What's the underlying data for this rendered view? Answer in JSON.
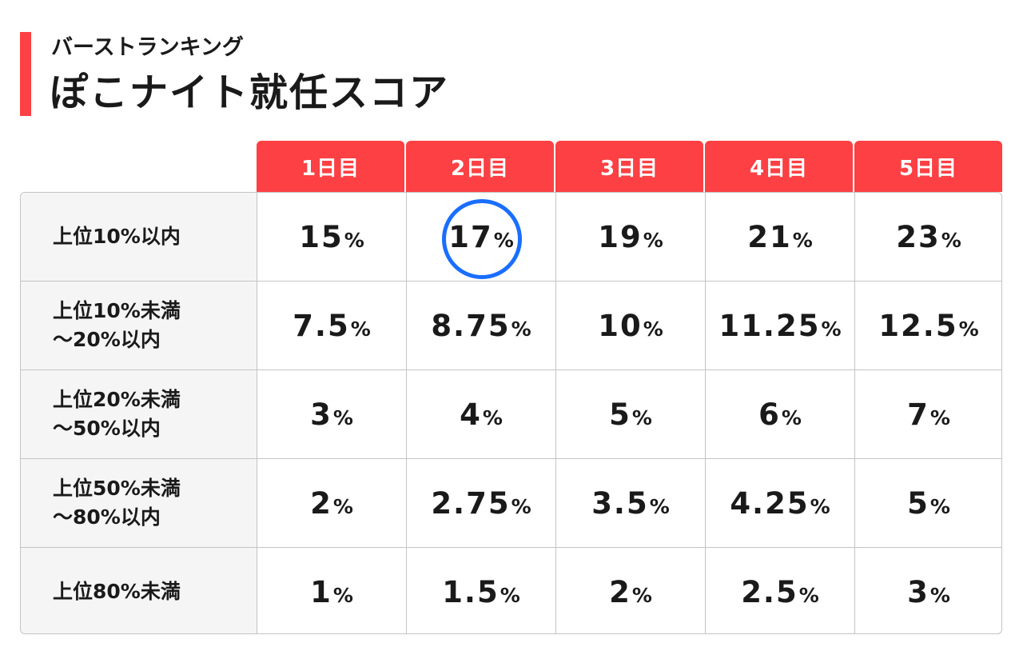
{
  "header": {
    "subtitle": "バーストランキング",
    "title": "ぽこナイト就任スコア"
  },
  "colors": {
    "accent": "#fc4044",
    "highlight": "#1a6eff"
  },
  "table": {
    "columns": [
      "1日目",
      "2日目",
      "3日目",
      "4日目",
      "5日目"
    ],
    "rows": [
      {
        "label_lines": [
          "上位10%以内"
        ],
        "values": [
          "15",
          "17",
          "19",
          "21",
          "23"
        ]
      },
      {
        "label_lines": [
          "上位10%未満",
          "～20%以内"
        ],
        "values": [
          "7.5",
          "8.75",
          "10",
          "11.25",
          "12.5"
        ]
      },
      {
        "label_lines": [
          "上位20%未満",
          "～50%以内"
        ],
        "values": [
          "3",
          "4",
          "5",
          "6",
          "7"
        ]
      },
      {
        "label_lines": [
          "上位50%未満",
          "～80%以内"
        ],
        "values": [
          "2",
          "2.75",
          "3.5",
          "4.25",
          "5"
        ]
      },
      {
        "label_lines": [
          "上位80%未満"
        ],
        "values": [
          "1",
          "1.5",
          "2",
          "2.5",
          "3"
        ]
      }
    ],
    "unit": "%",
    "highlighted_cell": {
      "row": 0,
      "col": 1
    }
  }
}
